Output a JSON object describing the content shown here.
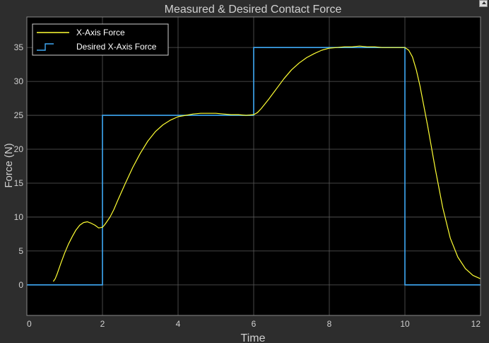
{
  "window": {
    "corner_icon": "expand-arrow-icon"
  },
  "chart_data": {
    "type": "line",
    "title": "Measured & Desired Contact Force",
    "xlabel": "Time",
    "ylabel": "Force (N)",
    "xlim": [
      0,
      12
    ],
    "ylim": [
      -4.5,
      39.5
    ],
    "xticks": [
      0,
      2,
      4,
      6,
      8,
      10,
      12
    ],
    "yticks": [
      0,
      5,
      10,
      15,
      20,
      25,
      30,
      35
    ],
    "grid": true,
    "legend_position": "top-left",
    "colors": {
      "background": "#000000",
      "figure": "#2d2d2d",
      "grid": "#5a5a5a",
      "text": "#d0d0d0",
      "measured": "#ffff33",
      "desired": "#3fa9f5"
    },
    "series": [
      {
        "name": "X-Axis Force",
        "style": "line",
        "x": [
          0.7,
          0.75,
          0.8,
          0.9,
          1.0,
          1.1,
          1.2,
          1.3,
          1.4,
          1.5,
          1.6,
          1.7,
          1.8,
          1.9,
          2.0,
          2.05,
          2.1,
          2.2,
          2.3,
          2.4,
          2.6,
          2.8,
          3.0,
          3.2,
          3.4,
          3.6,
          3.8,
          4.0,
          4.2,
          4.4,
          4.6,
          4.8,
          5.0,
          5.2,
          5.4,
          5.6,
          5.8,
          6.0,
          6.1,
          6.2,
          6.4,
          6.6,
          6.8,
          7.0,
          7.2,
          7.4,
          7.6,
          7.8,
          8.0,
          8.2,
          8.4,
          8.6,
          8.8,
          9.0,
          9.2,
          9.4,
          9.6,
          9.8,
          10.0,
          10.1,
          10.2,
          10.3,
          10.4,
          10.6,
          10.8,
          11.0,
          11.2,
          11.4,
          11.6,
          11.8,
          12.0
        ],
        "y": [
          0.5,
          0.9,
          1.6,
          3.2,
          4.7,
          6.0,
          7.1,
          8.1,
          8.8,
          9.2,
          9.3,
          9.1,
          8.8,
          8.4,
          8.5,
          8.8,
          9.2,
          10.0,
          11.1,
          12.4,
          14.9,
          17.3,
          19.4,
          21.2,
          22.6,
          23.6,
          24.3,
          24.8,
          25.0,
          25.2,
          25.3,
          25.3,
          25.3,
          25.2,
          25.1,
          25.1,
          25.0,
          25.1,
          25.4,
          26.0,
          27.4,
          28.9,
          30.4,
          31.7,
          32.7,
          33.5,
          34.1,
          34.6,
          34.9,
          35.0,
          35.1,
          35.1,
          35.2,
          35.1,
          35.1,
          35.0,
          35.0,
          35.0,
          35.0,
          34.6,
          33.6,
          31.7,
          29.3,
          23.5,
          17.2,
          11.4,
          6.9,
          4.1,
          2.4,
          1.4,
          0.9
        ]
      },
      {
        "name": "Desired X-Axis Force",
        "style": "step",
        "x": [
          0,
          2,
          2,
          6,
          6,
          10,
          10,
          12
        ],
        "y": [
          0,
          0,
          25,
          25,
          35,
          35,
          0,
          0
        ]
      }
    ]
  }
}
